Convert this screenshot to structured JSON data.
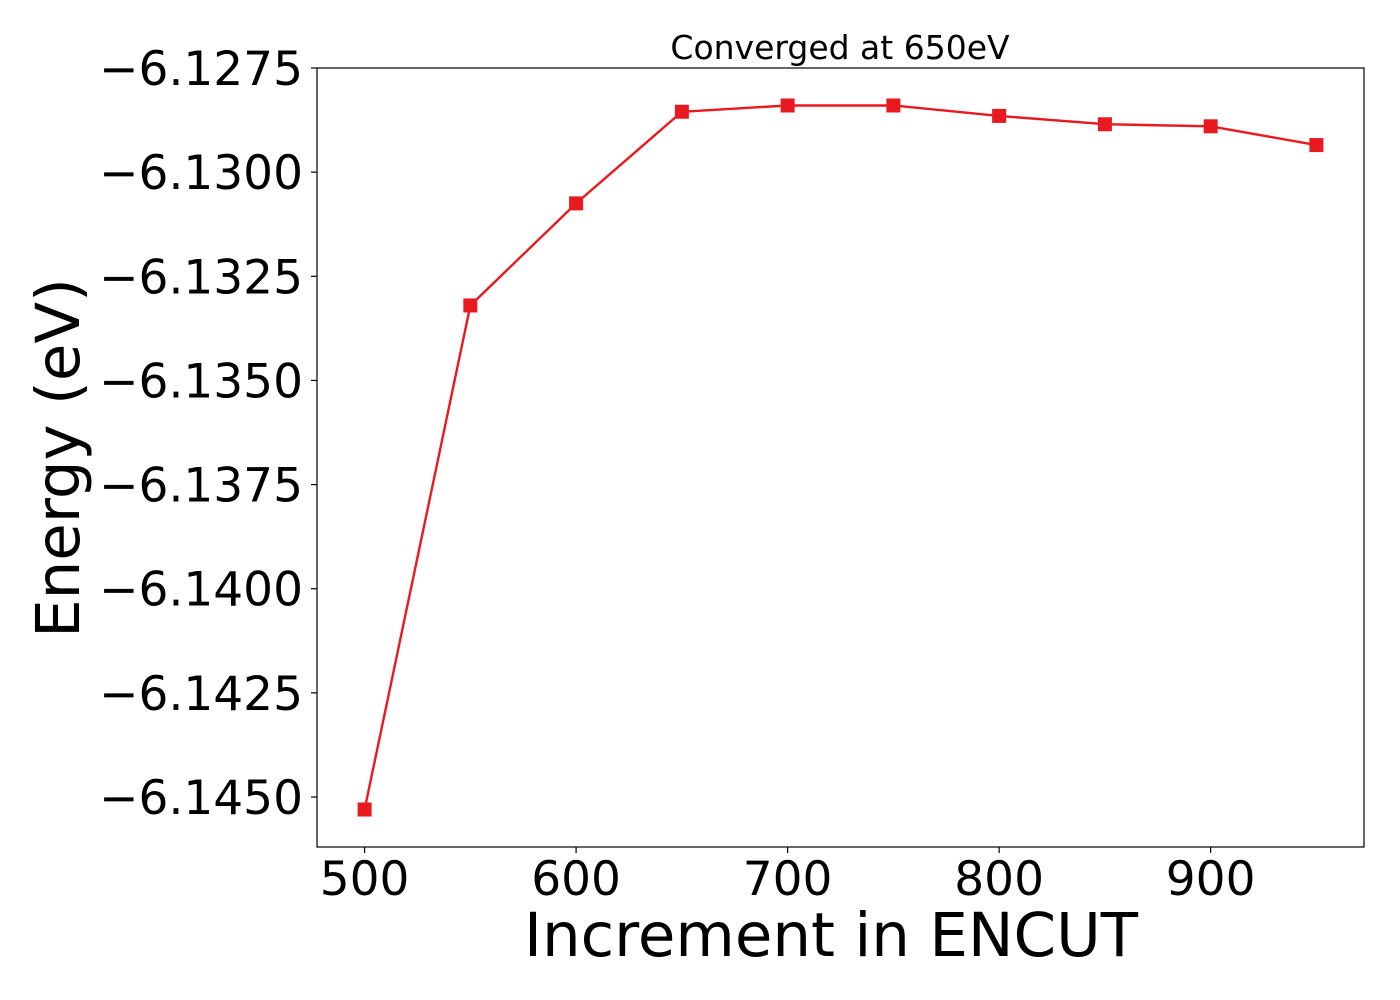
{
  "chart_data": {
    "type": "line",
    "title": "Converged at 650eV",
    "xlabel": "Increment in ENCUT",
    "ylabel": "Energy (eV)",
    "xlim": [
      477.5,
      972.5
    ],
    "ylim": [
      -6.1462,
      -6.1275
    ],
    "x_ticks": [
      500,
      600,
      700,
      800,
      900
    ],
    "y_ticks": [
      -6.1275,
      -6.13,
      -6.1325,
      -6.135,
      -6.1375,
      -6.14,
      -6.1425,
      -6.145
    ],
    "y_tick_labels": [
      "−6.1275",
      "−6.1300",
      "−6.1325",
      "−6.1350",
      "−6.1375",
      "−6.1400",
      "−6.1425",
      "−6.1450"
    ],
    "grid": false,
    "series": [
      {
        "color": "#e8191f",
        "marker": "square",
        "x": [
          500,
          550,
          600,
          650,
          700,
          750,
          800,
          850,
          900,
          950
        ],
        "y": [
          -6.1453,
          -6.1332,
          -6.13075,
          -6.12855,
          -6.1284,
          -6.1284,
          -6.12865,
          -6.12885,
          -6.1289,
          -6.12935
        ]
      }
    ]
  }
}
